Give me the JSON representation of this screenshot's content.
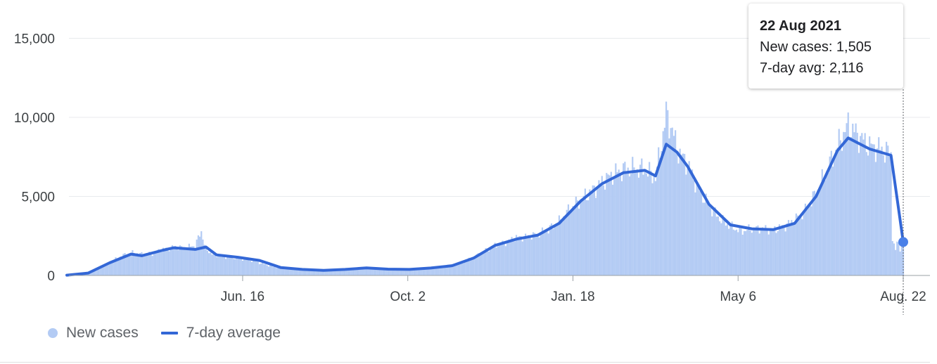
{
  "chart_data": {
    "type": "bar",
    "title": "",
    "xlabel": "",
    "ylabel": "",
    "x_range": [
      "2020-02-22",
      "2021-08-22"
    ],
    "ylim": [
      0,
      16000
    ],
    "y_ticks": [
      0,
      5000,
      10000,
      15000
    ],
    "y_tick_labels": [
      "0",
      "5,000",
      "10,000",
      "15,000"
    ],
    "x_ticks": [
      "2020-06-16",
      "2020-10-02",
      "2021-01-18",
      "2021-05-06",
      "2021-08-22"
    ],
    "x_tick_labels": [
      "Jun. 16",
      "Oct. 2",
      "Jan. 18",
      "May 6",
      "Aug. 22"
    ],
    "grid": true,
    "legend_position": "bottom-left",
    "series": [
      {
        "name": "New cases",
        "type": "bar",
        "color": "#b3cbf4",
        "points": [
          [
            "2020-02-22",
            10
          ],
          [
            "2020-02-29",
            40
          ],
          [
            "2020-03-07",
            130
          ],
          [
            "2020-03-14",
            400
          ],
          [
            "2020-03-21",
            800
          ],
          [
            "2020-03-28",
            1200
          ],
          [
            "2020-04-04",
            1450
          ],
          [
            "2020-04-11",
            1350
          ],
          [
            "2020-04-18",
            1400
          ],
          [
            "2020-04-25",
            1650
          ],
          [
            "2020-05-02",
            1800
          ],
          [
            "2020-05-09",
            1750
          ],
          [
            "2020-05-16",
            1900
          ],
          [
            "2020-05-20",
            2800
          ],
          [
            "2020-05-23",
            1600
          ],
          [
            "2020-05-30",
            1250
          ],
          [
            "2020-06-06",
            1150
          ],
          [
            "2020-06-13",
            1100
          ],
          [
            "2020-06-20",
            1000
          ],
          [
            "2020-06-27",
            800
          ],
          [
            "2020-07-04",
            600
          ],
          [
            "2020-07-11",
            450
          ],
          [
            "2020-07-18",
            400
          ],
          [
            "2020-07-25",
            380
          ],
          [
            "2020-08-01",
            300
          ],
          [
            "2020-08-08",
            330
          ],
          [
            "2020-08-15",
            340
          ],
          [
            "2020-08-22",
            380
          ],
          [
            "2020-08-29",
            460
          ],
          [
            "2020-09-05",
            480
          ],
          [
            "2020-09-12",
            430
          ],
          [
            "2020-09-19",
            400
          ],
          [
            "2020-09-26",
            420
          ],
          [
            "2020-10-03",
            380
          ],
          [
            "2020-10-10",
            420
          ],
          [
            "2020-10-17",
            500
          ],
          [
            "2020-10-24",
            560
          ],
          [
            "2020-10-31",
            650
          ],
          [
            "2020-11-07",
            800
          ],
          [
            "2020-11-14",
            1150
          ],
          [
            "2020-11-21",
            1500
          ],
          [
            "2020-11-28",
            1900
          ],
          [
            "2020-12-05",
            2100
          ],
          [
            "2020-12-12",
            2400
          ],
          [
            "2020-12-19",
            2450
          ],
          [
            "2020-12-26",
            2600
          ],
          [
            "2021-01-02",
            2900
          ],
          [
            "2021-01-09",
            3400
          ],
          [
            "2021-01-16",
            4200
          ],
          [
            "2021-01-23",
            4800
          ],
          [
            "2021-01-30",
            5300
          ],
          [
            "2021-02-06",
            5900
          ],
          [
            "2021-02-13",
            6400
          ],
          [
            "2021-02-20",
            6700
          ],
          [
            "2021-02-27",
            6750
          ],
          [
            "2021-03-06",
            6700
          ],
          [
            "2021-03-13",
            6200
          ],
          [
            "2021-03-17",
            8400
          ],
          [
            "2021-03-20",
            10200
          ],
          [
            "2021-03-24",
            9200
          ],
          [
            "2021-03-27",
            8000
          ],
          [
            "2021-04-03",
            7000
          ],
          [
            "2021-04-10",
            5500
          ],
          [
            "2021-04-17",
            4400
          ],
          [
            "2021-04-24",
            3600
          ],
          [
            "2021-05-01",
            3100
          ],
          [
            "2021-05-08",
            2800
          ],
          [
            "2021-05-15",
            2950
          ],
          [
            "2021-05-22",
            2950
          ],
          [
            "2021-05-29",
            2900
          ],
          [
            "2021-06-05",
            3100
          ],
          [
            "2021-06-12",
            3500
          ],
          [
            "2021-06-19",
            4100
          ],
          [
            "2021-06-26",
            5200
          ],
          [
            "2021-07-03",
            6600
          ],
          [
            "2021-07-10",
            8200
          ],
          [
            "2021-07-17",
            9500
          ],
          [
            "2021-07-24",
            8800
          ],
          [
            "2021-07-31",
            8200
          ],
          [
            "2021-08-07",
            8000
          ],
          [
            "2021-08-14",
            7700
          ]
        ]
      },
      {
        "name": "7-day average",
        "type": "line",
        "color": "#3367d6",
        "points": [
          [
            "2020-02-22",
            20
          ],
          [
            "2020-03-07",
            150
          ],
          [
            "2020-03-21",
            800
          ],
          [
            "2020-04-04",
            1350
          ],
          [
            "2020-04-11",
            1250
          ],
          [
            "2020-04-25",
            1600
          ],
          [
            "2020-05-02",
            1750
          ],
          [
            "2020-05-16",
            1650
          ],
          [
            "2020-05-23",
            1800
          ],
          [
            "2020-05-30",
            1300
          ],
          [
            "2020-06-13",
            1150
          ],
          [
            "2020-06-27",
            950
          ],
          [
            "2020-07-11",
            500
          ],
          [
            "2020-07-25",
            380
          ],
          [
            "2020-08-08",
            320
          ],
          [
            "2020-08-22",
            380
          ],
          [
            "2020-09-05",
            480
          ],
          [
            "2020-09-19",
            400
          ],
          [
            "2020-10-03",
            380
          ],
          [
            "2020-10-17",
            470
          ],
          [
            "2020-10-31",
            620
          ],
          [
            "2020-11-14",
            1100
          ],
          [
            "2020-11-28",
            1900
          ],
          [
            "2020-12-12",
            2300
          ],
          [
            "2020-12-26",
            2550
          ],
          [
            "2021-01-09",
            3300
          ],
          [
            "2021-01-23",
            4700
          ],
          [
            "2021-02-06",
            5800
          ],
          [
            "2021-02-20",
            6500
          ],
          [
            "2021-03-06",
            6650
          ],
          [
            "2021-03-13",
            6300
          ],
          [
            "2021-03-20",
            8300
          ],
          [
            "2021-03-27",
            7800
          ],
          [
            "2021-04-03",
            6900
          ],
          [
            "2021-04-17",
            4500
          ],
          [
            "2021-05-01",
            3200
          ],
          [
            "2021-05-15",
            2950
          ],
          [
            "2021-05-29",
            2900
          ],
          [
            "2021-06-12",
            3300
          ],
          [
            "2021-06-26",
            5000
          ],
          [
            "2021-07-10",
            7900
          ],
          [
            "2021-07-17",
            8700
          ],
          [
            "2021-07-31",
            8000
          ],
          [
            "2021-08-07",
            7800
          ],
          [
            "2021-08-14",
            7600
          ],
          [
            "2021-08-22",
            2116
          ]
        ]
      }
    ],
    "highlight": {
      "date": "2021-08-22",
      "new_cases": 1505,
      "avg": 2116
    }
  },
  "legend": {
    "new_cases": "New cases",
    "avg": "7-day average"
  },
  "tooltip": {
    "date": "22 Aug 2021",
    "new_cases": "New cases: 1,505",
    "avg": "7-day avg: 2,116"
  },
  "colors": {
    "bar": "#b3cbf4",
    "line": "#3367d6",
    "grid": "#e8eaed",
    "axis": "#9aa0a6"
  }
}
